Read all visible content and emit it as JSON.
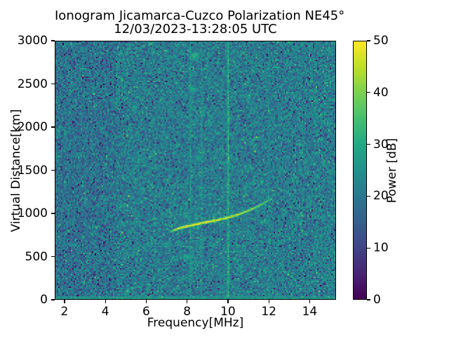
{
  "chart_data": {
    "type": "heatmap",
    "title": "Ionogram Jicamarca-Cuzco Polarization NE45°",
    "subtitle": "12/03/2023-13:28:05 UTC",
    "xlabel": "Frequency[MHz]",
    "ylabel": "Virtual Distance[km]",
    "xlim": [
      1.52,
      15.29
    ],
    "ylim": [
      0,
      3000
    ],
    "xticks": [
      2,
      4,
      6,
      8,
      10,
      12,
      14
    ],
    "yticks": [
      0,
      500,
      1000,
      1500,
      2000,
      2500,
      3000
    ],
    "grid": false,
    "colorbar": {
      "label": "Power [dB]",
      "vmin": 0,
      "vmax": 50,
      "ticks": [
        0,
        10,
        20,
        30,
        40,
        50
      ],
      "colormap": "viridis",
      "stops": [
        [
          0.0,
          "#440154"
        ],
        [
          0.1,
          "#482475"
        ],
        [
          0.2,
          "#414487"
        ],
        [
          0.3,
          "#355f8d"
        ],
        [
          0.4,
          "#2a788e"
        ],
        [
          0.5,
          "#21918c"
        ],
        [
          0.6,
          "#22a884"
        ],
        [
          0.7,
          "#44bf70"
        ],
        [
          0.8,
          "#7ad151"
        ],
        [
          0.9,
          "#bddf26"
        ],
        [
          1.0,
          "#fde725"
        ]
      ]
    },
    "background_noise": {
      "description": "speckled galactic/receiver noise filling the whole map",
      "mean_db": 21,
      "mean_db_low_freq": 19,
      "low_freq_cutoff_mhz": 4.5,
      "std_db": 4.5
    },
    "ground_echo": {
      "virtual_km_max": 30,
      "power_db": 25
    },
    "echo_trace": {
      "description": "F-region ionospheric echo trace rising toward critical frequency",
      "sigma_km": 16,
      "points": [
        {
          "freq_mhz": 7.15,
          "virtual_km": 780,
          "power_db": 34
        },
        {
          "freq_mhz": 7.35,
          "virtual_km": 805,
          "power_db": 42
        },
        {
          "freq_mhz": 7.55,
          "virtual_km": 823,
          "power_db": 50
        },
        {
          "freq_mhz": 8.0,
          "virtual_km": 850,
          "power_db": 50
        },
        {
          "freq_mhz": 8.5,
          "virtual_km": 876,
          "power_db": 50
        },
        {
          "freq_mhz": 9.0,
          "virtual_km": 900,
          "power_db": 50
        },
        {
          "freq_mhz": 9.5,
          "virtual_km": 922,
          "power_db": 49
        },
        {
          "freq_mhz": 10.0,
          "virtual_km": 950,
          "power_db": 47
        },
        {
          "freq_mhz": 10.5,
          "virtual_km": 985,
          "power_db": 46
        },
        {
          "freq_mhz": 11.0,
          "virtual_km": 1030,
          "power_db": 43
        },
        {
          "freq_mhz": 11.5,
          "virtual_km": 1085,
          "power_db": 40
        },
        {
          "freq_mhz": 11.9,
          "virtual_km": 1135,
          "power_db": 37
        },
        {
          "freq_mhz": 12.2,
          "virtual_km": 1172,
          "power_db": 33
        }
      ]
    },
    "interference_lines": [
      {
        "freq_mhz": 10.0,
        "power_db": 33,
        "sigma_mhz": 0.05
      },
      {
        "freq_mhz": 8.17,
        "power_db": 25,
        "sigma_mhz": 0.05
      },
      {
        "freq_mhz": 8.7,
        "power_db": 24,
        "sigma_mhz": 0.05
      },
      {
        "freq_mhz": 12.05,
        "power_db": 26,
        "sigma_mhz": 0.04
      }
    ],
    "diffuse_patches": [
      {
        "freq_mhz": 8.35,
        "virtual_km": 2830,
        "sigma_mhz": 0.28,
        "sigma_km": 60,
        "power_db": 31
      },
      {
        "freq_mhz": 8.3,
        "virtual_km": 2440,
        "sigma_mhz": 0.22,
        "sigma_km": 55,
        "power_db": 29
      },
      {
        "freq_mhz": 8.55,
        "virtual_km": 1640,
        "sigma_mhz": 0.25,
        "sigma_km": 50,
        "power_db": 28
      },
      {
        "freq_mhz": 8.05,
        "virtual_km": 490,
        "sigma_mhz": 0.4,
        "sigma_km": 40,
        "power_db": 30
      },
      {
        "freq_mhz": 6.95,
        "virtual_km": 630,
        "sigma_mhz": 0.35,
        "sigma_km": 50,
        "power_db": 27
      },
      {
        "freq_mhz": 9.05,
        "virtual_km": 2050,
        "sigma_mhz": 0.22,
        "sigma_km": 45,
        "power_db": 27
      },
      {
        "freq_mhz": 10.0,
        "virtual_km": 40,
        "sigma_mhz": 0.12,
        "sigma_km": 60,
        "power_db": 31
      }
    ]
  }
}
